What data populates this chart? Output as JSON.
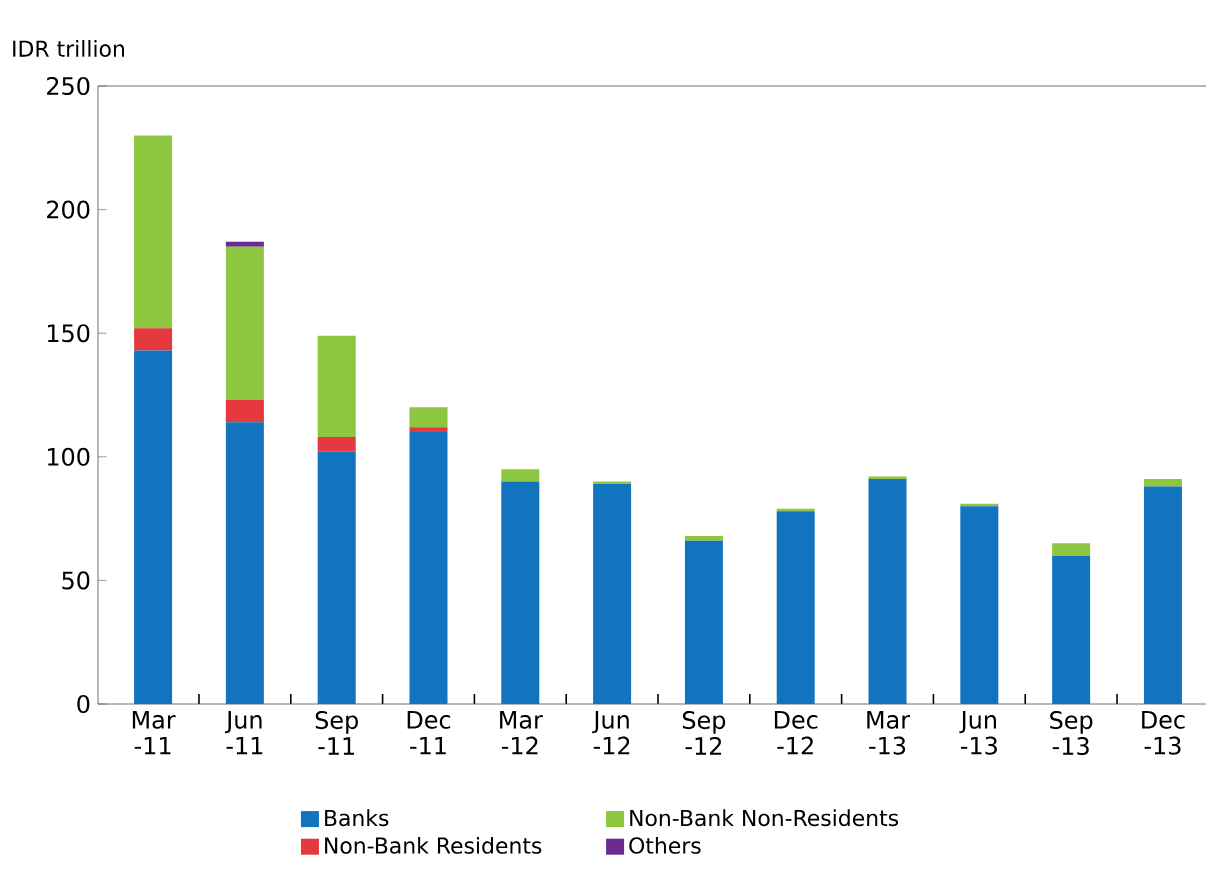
{
  "chart_data": {
    "type": "bar",
    "stacked": true,
    "ylabel": "IDR trillion",
    "categories": [
      "Mar -11",
      "Jun -11",
      "Sep -11",
      "Dec -11",
      "Mar -12",
      "Jun -12",
      "Sep -12",
      "Dec -12",
      "Mar -13",
      "Jun -13",
      "Sep -13",
      "Dec -13"
    ],
    "series": [
      {
        "name": "Banks",
        "color": "#1273bf",
        "values": [
          143,
          114,
          102,
          110,
          90,
          89,
          66,
          78,
          91,
          80,
          60,
          88
        ]
      },
      {
        "name": "Non-Bank Residents",
        "color": "#e5393f",
        "values": [
          9,
          9,
          6,
          2,
          0,
          0,
          0,
          0,
          0,
          0,
          0,
          0
        ]
      },
      {
        "name": "Non-Bank Non-Residents",
        "color": "#8dc63f",
        "values": [
          78,
          62,
          41,
          8,
          5,
          1,
          2,
          1,
          1,
          1,
          5,
          3
        ]
      },
      {
        "name": "Others",
        "color": "#6a2c91",
        "values": [
          0,
          2,
          0,
          0,
          0,
          0,
          0,
          0,
          0,
          0,
          0,
          0
        ]
      }
    ],
    "ylim": [
      0,
      250
    ],
    "yticks": [
      0,
      50,
      100,
      150,
      200,
      250
    ],
    "grid": false,
    "legend": "bottom"
  }
}
